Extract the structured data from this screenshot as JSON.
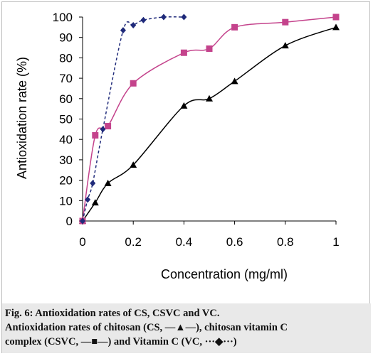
{
  "chart_data": {
    "type": "line",
    "xlabel": "Concentration (mg/ml)",
    "ylabel": "Antioxidation rate (%)",
    "xlim": [
      0,
      1
    ],
    "ylim": [
      0,
      100
    ],
    "x_ticks": [
      "0",
      "0.2",
      "0.4",
      "0.6",
      "0.8",
      "1"
    ],
    "y_ticks": [
      "0",
      "10",
      "20",
      "30",
      "40",
      "50",
      "60",
      "70",
      "80",
      "90",
      "100"
    ],
    "grid": false,
    "series": [
      {
        "marker": "triangle",
        "line_style": "solid",
        "color": "#000000",
        "x": [
          0,
          0.05,
          0.1,
          0.2,
          0.4,
          0.5,
          0.6,
          0.8,
          1.0
        ],
        "y": [
          0,
          9,
          18.5,
          27.5,
          56.5,
          60,
          68.5,
          86,
          95
        ]
      },
      {
        "marker": "square",
        "line_style": "solid",
        "color": "#c4438c",
        "x": [
          0,
          0.05,
          0.1,
          0.2,
          0.4,
          0.5,
          0.6,
          0.8,
          1.0
        ],
        "y": [
          0,
          42,
          46.5,
          67.5,
          82.5,
          84.5,
          95,
          97.5,
          100
        ]
      },
      {
        "marker": "diamond",
        "line_style": "dashed",
        "color": "#1f2a7a",
        "x": [
          0,
          0.02,
          0.04,
          0.08,
          0.16,
          0.2,
          0.24,
          0.32,
          0.4
        ],
        "y": [
          0,
          10.5,
          18.5,
          45,
          93.5,
          96,
          98.5,
          100,
          100
        ]
      }
    ]
  },
  "caption": {
    "line1": "Fig. 6: Antioxidation rates of CS, CSVC and VC.",
    "line2": "Antioxidation rates of chitosan (CS, —▲—), chitosan vitamin C",
    "line3": "complex (CSVC, —■—) and Vitamin C (VC, ···◆···)"
  }
}
